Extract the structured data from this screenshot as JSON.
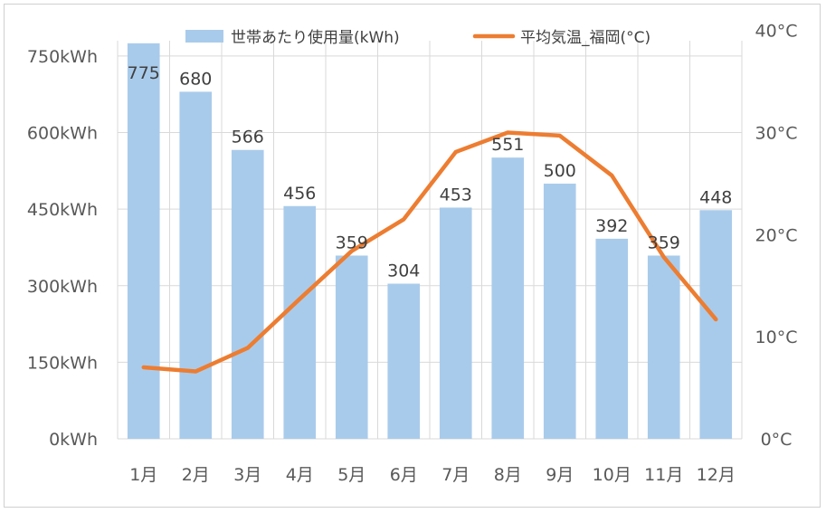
{
  "chart_data": {
    "type": "bar",
    "categories": [
      "1月",
      "2月",
      "3月",
      "4月",
      "5月",
      "6月",
      "7月",
      "8月",
      "9月",
      "10月",
      "11月",
      "12月"
    ],
    "series": [
      {
        "name": "世帯あたり使用量(kWh)",
        "kind": "bar",
        "axis": "left",
        "color": "#a9cbeb",
        "values": [
          775,
          680,
          566,
          456,
          359,
          304,
          453,
          551,
          500,
          392,
          359,
          448
        ],
        "data_labels": [
          "775",
          "680",
          "566",
          "456",
          "359",
          "304",
          "453",
          "551",
          "500",
          "392",
          "359",
          "448"
        ]
      },
      {
        "name": "平均気温_福岡(°C)",
        "kind": "line",
        "axis": "right",
        "color": "#ed7d31",
        "values": [
          7.0,
          6.6,
          8.9,
          13.7,
          18.4,
          21.5,
          28.1,
          30.0,
          29.7,
          25.8,
          17.8,
          11.7
        ]
      }
    ],
    "y_left": {
      "ylim": [
        0,
        780
      ],
      "ticks": [
        0,
        150,
        300,
        450,
        600,
        750
      ],
      "tick_labels": [
        "0kWh",
        "150kWh",
        "300kWh",
        "450kWh",
        "600kWh",
        "750kWh"
      ]
    },
    "y_right": {
      "ylim": [
        0,
        39
      ],
      "ticks": [
        0,
        10,
        20,
        30,
        40
      ],
      "tick_labels": [
        "0°C",
        "10°C",
        "20°C",
        "30°C",
        "40°C"
      ]
    },
    "grid": true,
    "legend_position": "top",
    "title": ""
  }
}
